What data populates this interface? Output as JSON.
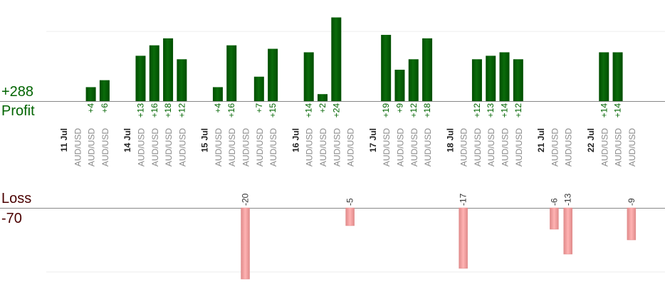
{
  "summary": {
    "profit_total": "+288",
    "profit_label": "Profit",
    "loss_label": "Loss",
    "loss_total": "-70"
  },
  "colors": {
    "profit_bar": "#0b6b0b",
    "profit_bar_dark": "#004d00",
    "profit_text": "#006400",
    "loss_bar": "#ffb3b3",
    "loss_bar_edge": "#e08a8a",
    "loss_text": "#333333",
    "label_gray": "#8a8a8a",
    "date_text": "#222222",
    "grid": "#eeeeee",
    "axis": "#888888"
  },
  "chart_data": {
    "type": "bar",
    "profit_axis": {
      "max_visible": 29,
      "gridline_value": 20
    },
    "loss_axis": {
      "max_visible": 23,
      "gridline_value": 18
    },
    "columns": [
      {
        "kind": "date",
        "label": "11 Jul"
      },
      {
        "kind": "trade",
        "symbol": "AUD/USD",
        "value": 0
      },
      {
        "kind": "trade",
        "symbol": "AUD/USD",
        "value": 4,
        "value_label": "+4"
      },
      {
        "kind": "trade",
        "symbol": "AUD/USD",
        "value": 6,
        "value_label": "+6"
      },
      {
        "kind": "gap"
      },
      {
        "kind": "date",
        "label": "14 Jul"
      },
      {
        "kind": "trade",
        "symbol": "AUD/USD",
        "value": 13,
        "value_label": "+13"
      },
      {
        "kind": "trade",
        "symbol": "AUD/USD",
        "value": 16,
        "value_label": "+16"
      },
      {
        "kind": "trade",
        "symbol": "AUD/USD",
        "value": 18,
        "value_label": "+18"
      },
      {
        "kind": "trade",
        "symbol": "AUD/USD",
        "value": 12,
        "value_label": "+12"
      },
      {
        "kind": "gap"
      },
      {
        "kind": "date",
        "label": "15 Jul"
      },
      {
        "kind": "trade",
        "symbol": "AUD/USD",
        "value": 4,
        "value_label": "+4"
      },
      {
        "kind": "trade",
        "symbol": "AUD/USD",
        "value": 16,
        "value_label": "+16"
      },
      {
        "kind": "trade",
        "symbol": "AUD/USD",
        "value": -20,
        "value_label": "-20"
      },
      {
        "kind": "trade",
        "symbol": "AUD/USD",
        "value": 7,
        "value_label": "+7"
      },
      {
        "kind": "trade",
        "symbol": "AUD/USD",
        "value": 15,
        "value_label": "+15"
      },
      {
        "kind": "gap"
      },
      {
        "kind": "date",
        "label": "16 Jul"
      },
      {
        "kind": "trade",
        "symbol": "AUD/USD",
        "value": 14,
        "value_label": "+14"
      },
      {
        "kind": "trade",
        "symbol": "AUD/USD",
        "value": 2,
        "value_label": "+2"
      },
      {
        "kind": "trade",
        "symbol": "AUD/USD",
        "value": 24,
        "value_label": "+24"
      },
      {
        "kind": "trade",
        "symbol": "AUD/USD",
        "value": -5,
        "value_label": "-5"
      },
      {
        "kind": "gap"
      },
      {
        "kind": "date",
        "label": "17 Jul"
      },
      {
        "kind": "trade",
        "symbol": "AUD/USD",
        "value": 19,
        "value_label": "+19"
      },
      {
        "kind": "trade",
        "symbol": "AUD/USD",
        "value": 9,
        "value_label": "+9"
      },
      {
        "kind": "trade",
        "symbol": "AUD/USD",
        "value": 12,
        "value_label": "+12"
      },
      {
        "kind": "trade",
        "symbol": "AUD/USD",
        "value": 18,
        "value_label": "+18"
      },
      {
        "kind": "gap"
      },
      {
        "kind": "date",
        "label": "18 Jul"
      },
      {
        "kind": "trade",
        "symbol": "AUD/USD",
        "value": -17,
        "value_label": "-17"
      },
      {
        "kind": "trade",
        "symbol": "AUD/USD",
        "value": 12,
        "value_label": "+12"
      },
      {
        "kind": "trade",
        "symbol": "AUD/USD",
        "value": 13,
        "value_label": "+13"
      },
      {
        "kind": "trade",
        "symbol": "AUD/USD",
        "value": 14,
        "value_label": "+14"
      },
      {
        "kind": "trade",
        "symbol": "AUD/USD",
        "value": 12,
        "value_label": "+12"
      },
      {
        "kind": "gap"
      },
      {
        "kind": "date",
        "label": "21 Jul"
      },
      {
        "kind": "trade",
        "symbol": "AUD/USD",
        "value": -6,
        "value_label": "-6"
      },
      {
        "kind": "trade",
        "symbol": "AUD/USD",
        "value": -13,
        "value_label": "-13"
      },
      {
        "kind": "gap"
      },
      {
        "kind": "date",
        "label": "22 Jul"
      },
      {
        "kind": "trade",
        "symbol": "AUD/USD",
        "value": 14,
        "value_label": "+14"
      },
      {
        "kind": "trade",
        "symbol": "AUD/USD",
        "value": 14,
        "value_label": "+14"
      },
      {
        "kind": "trade",
        "symbol": "AUD/USD",
        "value": -9,
        "value_label": "-9"
      }
    ]
  }
}
